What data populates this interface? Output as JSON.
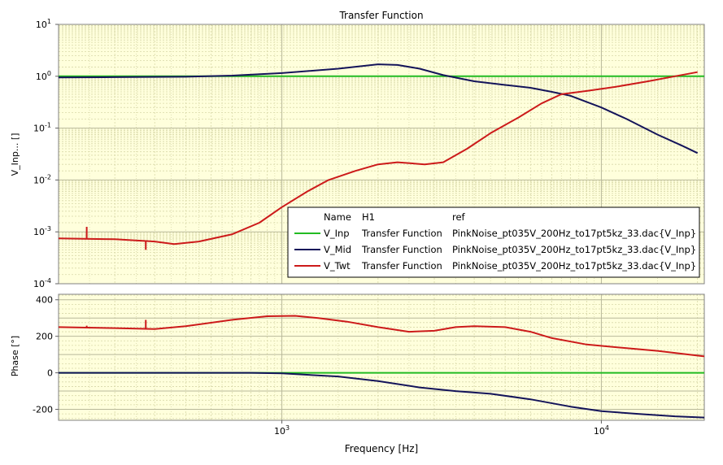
{
  "chart_data": {
    "type": "line",
    "title": "Transfer Function",
    "xlabel": "Frequency [Hz]",
    "x_scale": "log",
    "xlim": [
      200,
      21000
    ],
    "x_ticks": [
      {
        "value": 1000,
        "base": "10",
        "exp": "3"
      },
      {
        "value": 10000,
        "base": "10",
        "exp": "4"
      }
    ],
    "legend": {
      "placement": "inside-bottom-right of magnitude panel",
      "headers": [
        "Name",
        "H1",
        "ref"
      ],
      "entries": [
        {
          "name": "V_Inp",
          "h1": "Transfer Function",
          "ref": "PinkNoise_pt035V_200Hz_to17pt5kz_33.dac{V_Inp}",
          "color": "#22bb22"
        },
        {
          "name": "V_Mid",
          "h1": "Transfer Function",
          "ref": "PinkNoise_pt035V_200Hz_to17pt5kz_33.dac{V_Inp}",
          "color": "#14145a"
        },
        {
          "name": "V_Twt",
          "h1": "Transfer Function",
          "ref": "PinkNoise_pt035V_200Hz_to17pt5kz_33.dac{V_Inp}",
          "color": "#cc1a1a"
        }
      ]
    },
    "panels": [
      {
        "name": "magnitude",
        "ylabel": "V_Inp... []",
        "y_scale": "log",
        "ylim": [
          0.0001,
          10
        ],
        "y_ticks": [
          {
            "value": 10,
            "base": "10",
            "exp": "1"
          },
          {
            "value": 1,
            "base": "10",
            "exp": "0"
          },
          {
            "value": 0.1,
            "base": "10",
            "exp": "-1"
          },
          {
            "value": 0.01,
            "base": "10",
            "exp": "-2"
          },
          {
            "value": 0.001,
            "base": "10",
            "exp": "-3"
          },
          {
            "value": 0.0001,
            "base": "10",
            "exp": "-4"
          }
        ],
        "series": [
          {
            "name": "V_Inp",
            "color": "#22bb22",
            "points": [
              [
                200,
                1.0
              ],
              [
                21000,
                1.0
              ]
            ]
          },
          {
            "name": "V_Mid",
            "color": "#14145a",
            "points": [
              [
                200,
                0.95
              ],
              [
                300,
                0.96
              ],
              [
                500,
                0.98
              ],
              [
                700,
                1.03
              ],
              [
                1000,
                1.15
              ],
              [
                1500,
                1.4
              ],
              [
                2000,
                1.7
              ],
              [
                2300,
                1.65
              ],
              [
                2700,
                1.4
              ],
              [
                3200,
                1.05
              ],
              [
                4000,
                0.8
              ],
              [
                5000,
                0.68
              ],
              [
                6000,
                0.6
              ],
              [
                7000,
                0.5
              ],
              [
                8000,
                0.42
              ],
              [
                10000,
                0.25
              ],
              [
                12000,
                0.15
              ],
              [
                15000,
                0.075
              ],
              [
                18000,
                0.045
              ],
              [
                20000,
                0.033
              ]
            ]
          },
          {
            "name": "V_Twt",
            "color": "#cc1a1a",
            "points": [
              [
                200,
                0.00075
              ],
              [
                300,
                0.00072
              ],
              [
                400,
                0.00065
              ],
              [
                460,
                0.00058
              ],
              [
                550,
                0.00065
              ],
              [
                700,
                0.0009
              ],
              [
                850,
                0.0015
              ],
              [
                1000,
                0.003
              ],
              [
                1200,
                0.006
              ],
              [
                1400,
                0.01
              ],
              [
                1700,
                0.015
              ],
              [
                2000,
                0.02
              ],
              [
                2300,
                0.022
              ],
              [
                2800,
                0.02
              ],
              [
                3200,
                0.022
              ],
              [
                3800,
                0.04
              ],
              [
                4500,
                0.08
              ],
              [
                5500,
                0.16
              ],
              [
                6500,
                0.3
              ],
              [
                7500,
                0.45
              ],
              [
                9000,
                0.52
              ],
              [
                11000,
                0.62
              ],
              [
                14000,
                0.8
              ],
              [
                17000,
                1.0
              ],
              [
                20000,
                1.2
              ]
            ]
          }
        ]
      },
      {
        "name": "phase",
        "ylabel": "Phase [°]",
        "y_scale": "linear",
        "ylim": [
          -260,
          430
        ],
        "y_ticks": [
          {
            "value": 400,
            "label": "400"
          },
          {
            "value": 200,
            "label": "200"
          },
          {
            "value": 0,
            "label": "0"
          },
          {
            "value": -200,
            "label": "-200"
          }
        ],
        "series": [
          {
            "name": "V_Inp",
            "color": "#22bb22",
            "points": [
              [
                200,
                0
              ],
              [
                21000,
                0
              ]
            ]
          },
          {
            "name": "V_Mid",
            "color": "#14145a",
            "points": [
              [
                200,
                0
              ],
              [
                800,
                0
              ],
              [
                1000,
                -3
              ],
              [
                1500,
                -20
              ],
              [
                2000,
                -45
              ],
              [
                2700,
                -80
              ],
              [
                3500,
                -100
              ],
              [
                4500,
                -115
              ],
              [
                6000,
                -145
              ],
              [
                8000,
                -185
              ],
              [
                10000,
                -210
              ],
              [
                13000,
                -225
              ],
              [
                17000,
                -238
              ],
              [
                21000,
                -245
              ]
            ]
          },
          {
            "name": "V_Twt",
            "color": "#cc1a1a",
            "points": [
              [
                200,
                250
              ],
              [
                300,
                245
              ],
              [
                400,
                240
              ],
              [
                500,
                255
              ],
              [
                700,
                290
              ],
              [
                900,
                310
              ],
              [
                1100,
                312
              ],
              [
                1300,
                300
              ],
              [
                1600,
                280
              ],
              [
                2000,
                250
              ],
              [
                2500,
                225
              ],
              [
                3000,
                230
              ],
              [
                3500,
                250
              ],
              [
                4000,
                255
              ],
              [
                5000,
                250
              ],
              [
                6000,
                225
              ],
              [
                7000,
                190
              ],
              [
                9000,
                155
              ],
              [
                12000,
                135
              ],
              [
                15000,
                120
              ],
              [
                21000,
                90
              ]
            ]
          }
        ]
      }
    ],
    "spikes": [
      {
        "panel": "magnitude",
        "series": "V_Twt",
        "x": 245,
        "base": 0.00075,
        "peak": 0.00125
      },
      {
        "panel": "magnitude",
        "series": "V_Twt",
        "x": 375,
        "base": 0.00068,
        "peak": 0.00045
      },
      {
        "panel": "phase",
        "series": "V_Twt",
        "x": 245,
        "base": 248,
        "peak": 258
      },
      {
        "panel": "phase",
        "series": "V_Twt",
        "x": 375,
        "base": 240,
        "peak": 290
      }
    ]
  }
}
